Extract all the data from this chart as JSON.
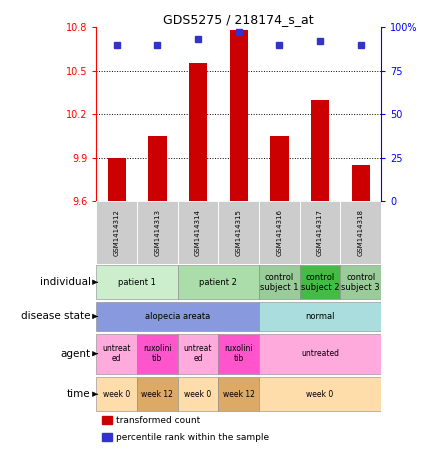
{
  "title": "GDS5275 / 218174_s_at",
  "samples": [
    "GSM1414312",
    "GSM1414313",
    "GSM1414314",
    "GSM1414315",
    "GSM1414316",
    "GSM1414317",
    "GSM1414318"
  ],
  "bar_values": [
    9.9,
    10.05,
    10.55,
    10.78,
    10.05,
    10.3,
    9.85
  ],
  "dot_values": [
    90,
    90,
    93,
    97,
    90,
    92,
    90
  ],
  "ylim_left": [
    9.6,
    10.8
  ],
  "ylim_right": [
    0,
    100
  ],
  "yticks_left": [
    9.6,
    9.9,
    10.2,
    10.5,
    10.8
  ],
  "yticks_right": [
    0,
    25,
    50,
    75,
    100
  ],
  "ytick_labels_left": [
    "9.6",
    "9.9",
    "10.2",
    "10.5",
    "10.8"
  ],
  "ytick_labels_right": [
    "0",
    "25",
    "50",
    "75",
    "100%"
  ],
  "bar_color": "#cc0000",
  "dot_color": "#3333cc",
  "bar_bottom": 9.6,
  "annotation_rows": [
    {
      "label": "individual",
      "cells": [
        {
          "text": "patient 1",
          "span": 2,
          "color": "#cceecc"
        },
        {
          "text": "patient 2",
          "span": 2,
          "color": "#aaddaa"
        },
        {
          "text": "control\nsubject 1",
          "span": 1,
          "color": "#99cc99"
        },
        {
          "text": "control\nsubject 2",
          "span": 1,
          "color": "#44bb44"
        },
        {
          "text": "control\nsubject 3",
          "span": 1,
          "color": "#99cc99"
        }
      ]
    },
    {
      "label": "disease state",
      "cells": [
        {
          "text": "alopecia areata",
          "span": 4,
          "color": "#8899dd"
        },
        {
          "text": "normal",
          "span": 3,
          "color": "#aadddd"
        }
      ]
    },
    {
      "label": "agent",
      "cells": [
        {
          "text": "untreat\ned",
          "span": 1,
          "color": "#ffaadd"
        },
        {
          "text": "ruxolini\ntib",
          "span": 1,
          "color": "#ff55cc"
        },
        {
          "text": "untreat\ned",
          "span": 1,
          "color": "#ffaadd"
        },
        {
          "text": "ruxolini\ntib",
          "span": 1,
          "color": "#ff55cc"
        },
        {
          "text": "untreated",
          "span": 3,
          "color": "#ffaadd"
        }
      ]
    },
    {
      "label": "time",
      "cells": [
        {
          "text": "week 0",
          "span": 1,
          "color": "#ffddaa"
        },
        {
          "text": "week 12",
          "span": 1,
          "color": "#ddaa66"
        },
        {
          "text": "week 0",
          "span": 1,
          "color": "#ffddaa"
        },
        {
          "text": "week 12",
          "span": 1,
          "color": "#ddaa66"
        },
        {
          "text": "week 0",
          "span": 3,
          "color": "#ffddaa"
        }
      ]
    }
  ],
  "legend_items": [
    {
      "color": "#cc0000",
      "label": "transformed count",
      "marker": "square"
    },
    {
      "color": "#3333cc",
      "label": "percentile rank within the sample",
      "marker": "square"
    }
  ],
  "sample_col_bg": "#cccccc",
  "fig_width": 4.38,
  "fig_height": 4.53,
  "dpi": 100
}
